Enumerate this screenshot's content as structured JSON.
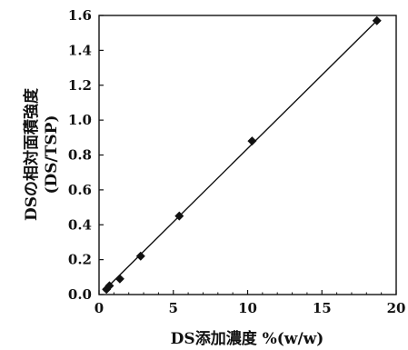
{
  "chart_data": {
    "type": "scatter",
    "title": "",
    "xlabel": "DS添加濃度 %(w/w)",
    "ylabel": "DSの相対面積強度",
    "ylabel_sub": "(DS/TSP)",
    "xlim": [
      0,
      20
    ],
    "ylim": [
      0.0,
      1.6
    ],
    "x_ticks": [
      0,
      5,
      10,
      15,
      20
    ],
    "y_ticks": [
      0.0,
      0.2,
      0.4,
      0.6,
      0.8,
      1.0,
      1.2,
      1.4,
      1.6
    ],
    "x_tick_labels": [
      "0",
      "5",
      "10",
      "15",
      "20"
    ],
    "y_tick_labels": [
      "0.0",
      "0.2",
      "0.4",
      "0.6",
      "0.8",
      "1.0",
      "1.2",
      "1.4",
      "1.6"
    ],
    "grid": false,
    "legend": "none",
    "marker": "diamond",
    "colors": {
      "marker": "#111111",
      "line": "#111111",
      "axis": "#111111"
    },
    "series": [
      {
        "points": [
          {
            "x": 0.5,
            "y": 0.03
          },
          {
            "x": 0.7,
            "y": 0.05
          },
          {
            "x": 1.4,
            "y": 0.09
          },
          {
            "x": 2.8,
            "y": 0.22
          },
          {
            "x": 5.4,
            "y": 0.45
          },
          {
            "x": 10.3,
            "y": 0.88
          },
          {
            "x": 18.7,
            "y": 1.57
          }
        ]
      }
    ],
    "trendline": {
      "type": "linear",
      "x": [
        0.3,
        18.7
      ],
      "y": [
        0.02,
        1.57
      ]
    }
  }
}
